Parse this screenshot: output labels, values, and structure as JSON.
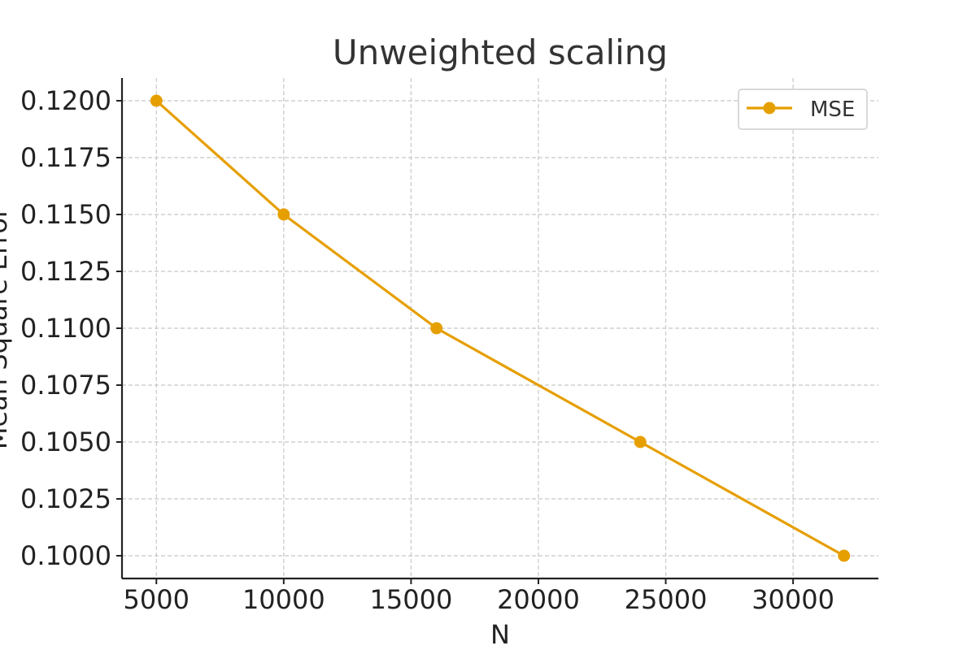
{
  "chart_data": {
    "type": "line",
    "title": "Unweighted scaling",
    "xlabel": "N",
    "ylabel": "Mean Square Error",
    "x": [
      5000,
      10000,
      16000,
      24000,
      32000
    ],
    "series": [
      {
        "name": "MSE",
        "values": [
          0.12,
          0.115,
          0.11,
          0.105,
          0.1
        ],
        "color": "#E69F00",
        "marker": "circle"
      }
    ],
    "xticks": [
      5000,
      10000,
      15000,
      20000,
      25000,
      30000
    ],
    "xtick_labels": [
      "5000",
      "10000",
      "15000",
      "20000",
      "25000",
      "30000"
    ],
    "yticks": [
      0.1,
      0.1025,
      0.105,
      0.1075,
      0.11,
      0.1125,
      0.115,
      0.1175,
      0.12
    ],
    "ytick_labels": [
      "0.1000",
      "0.1025",
      "0.1050",
      "0.1075",
      "0.1100",
      "0.1125",
      "0.1150",
      "0.1175",
      "0.1200"
    ],
    "xlim": [
      3650,
      33350
    ],
    "ylim": [
      0.099,
      0.121
    ],
    "grid": true,
    "legend_position": "top-right"
  }
}
